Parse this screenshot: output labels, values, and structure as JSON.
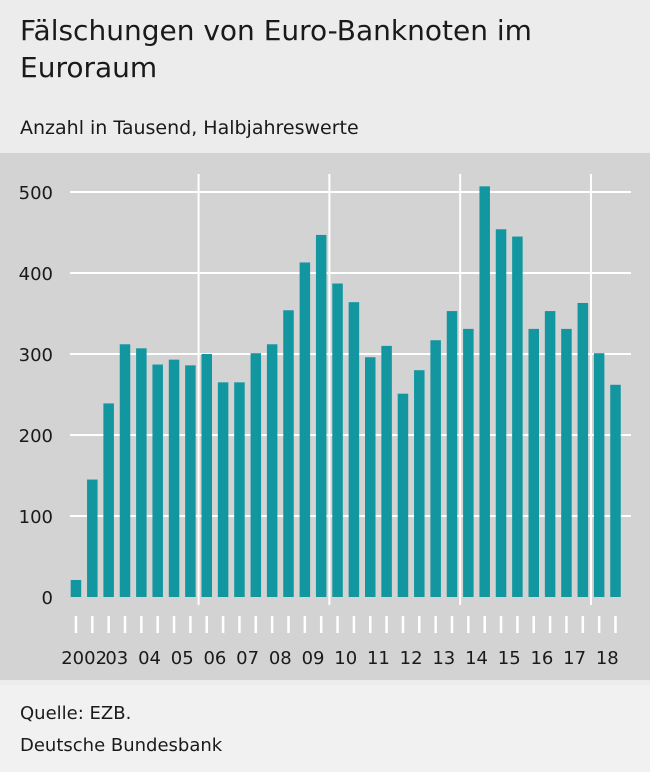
{
  "title": "Fälschungen von Euro-Banknoten im Euroraum",
  "subtitle": "Anzahl in Tausend, Halbjahreswerte",
  "source": "Quelle: EZB.",
  "organization": "Deutsche Bundesbank",
  "colors": {
    "bar": "#1296a0",
    "panel": "#d3d3d3",
    "background": "#ececec",
    "grid": "#ffffff"
  },
  "chart_data": {
    "type": "bar",
    "title": "Fälschungen von Euro-Banknoten im Euroraum",
    "subtitle": "Anzahl in Tausend, Halbjahreswerte",
    "xlabel": "",
    "ylabel": "",
    "ylim": [
      0,
      500
    ],
    "yticks": [
      0,
      100,
      200,
      300,
      400,
      500
    ],
    "grid": true,
    "year_labels": [
      "2002",
      "03",
      "04",
      "05",
      "06",
      "07",
      "08",
      "09",
      "10",
      "11",
      "12",
      "13",
      "14",
      "15",
      "16",
      "17",
      "18"
    ],
    "categories": [
      "2002 H1",
      "2002 H2",
      "2003 H1",
      "2003 H2",
      "2004 H1",
      "2004 H2",
      "2005 H1",
      "2005 H2",
      "2006 H1",
      "2006 H2",
      "2007 H1",
      "2007 H2",
      "2008 H1",
      "2008 H2",
      "2009 H1",
      "2009 H2",
      "2010 H1",
      "2010 H2",
      "2011 H1",
      "2011 H2",
      "2012 H1",
      "2012 H2",
      "2013 H1",
      "2013 H2",
      "2014 H1",
      "2014 H2",
      "2015 H1",
      "2015 H2",
      "2016 H1",
      "2016 H2",
      "2017 H1",
      "2017 H2",
      "2018 H1",
      "2018 H2"
    ],
    "values": [
      21,
      145,
      239,
      312,
      307,
      287,
      293,
      286,
      300,
      265,
      265,
      301,
      312,
      354,
      413,
      447,
      387,
      364,
      296,
      310,
      251,
      280,
      317,
      353,
      331,
      507,
      454,
      445,
      331,
      353,
      331,
      363,
      301,
      262
    ]
  }
}
